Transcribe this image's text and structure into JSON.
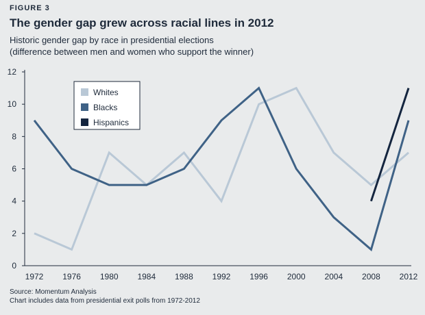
{
  "figure_label": "FIGURE 3",
  "title": "The gender gap grew across racial lines in 2012",
  "subtitle_lines": [
    "Historic gender gap by race in presidential elections",
    "(difference between men and women who support the winner)"
  ],
  "source": "Source: Momentum Analysis",
  "note": "Chart includes data from presidential exit polls  from 1972-2012",
  "chart_data": {
    "type": "line",
    "x": [
      "1972",
      "1976",
      "1980",
      "1984",
      "1988",
      "1992",
      "1996",
      "2000",
      "2004",
      "2008",
      "2012"
    ],
    "ylim": [
      0,
      12
    ],
    "yticks": [
      0,
      2,
      4,
      6,
      8,
      10,
      12
    ],
    "grid": false,
    "legend_position": "top-left",
    "series": [
      {
        "name": "Whites",
        "color": "#b9c8d6",
        "values": [
          2,
          1,
          7,
          5,
          7,
          4,
          10,
          11,
          7,
          5,
          7
        ]
      },
      {
        "name": "Blacks",
        "color": "#3f6286",
        "values": [
          9,
          6,
          5,
          5,
          6,
          9,
          11,
          6,
          3,
          1,
          9
        ]
      },
      {
        "name": "Hispanics",
        "color": "#14253f",
        "values": [
          null,
          null,
          null,
          null,
          null,
          null,
          null,
          null,
          null,
          4,
          11
        ]
      }
    ]
  }
}
